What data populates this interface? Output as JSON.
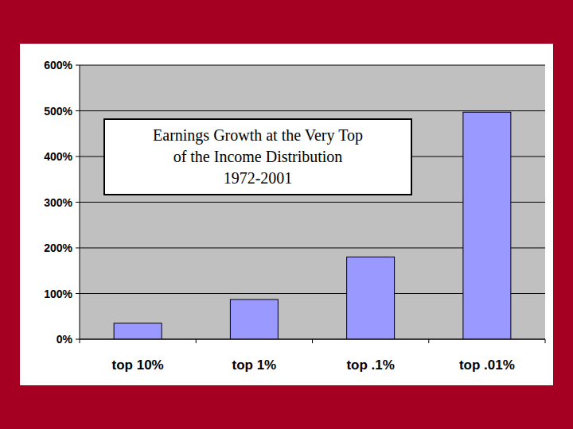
{
  "chart_data": {
    "type": "bar",
    "title": "Earnings Growth at the Very Top\nof the Income Distribution\n1972-2001",
    "categories": [
      "top 10%",
      "top 1%",
      "top .1%",
      "top .01%"
    ],
    "values": [
      35,
      87,
      180,
      497
    ],
    "color": "#9999ff",
    "ylim": [
      0,
      600
    ],
    "yticks": [
      {
        "value": 0,
        "label": "0%"
      },
      {
        "value": 100,
        "label": "100%"
      },
      {
        "value": 200,
        "label": "200%"
      },
      {
        "value": 300,
        "label": "300%"
      },
      {
        "value": 400,
        "label": "400%"
      },
      {
        "value": 500,
        "label": "500%"
      },
      {
        "value": 600,
        "label": "600%"
      }
    ],
    "grid": true
  }
}
